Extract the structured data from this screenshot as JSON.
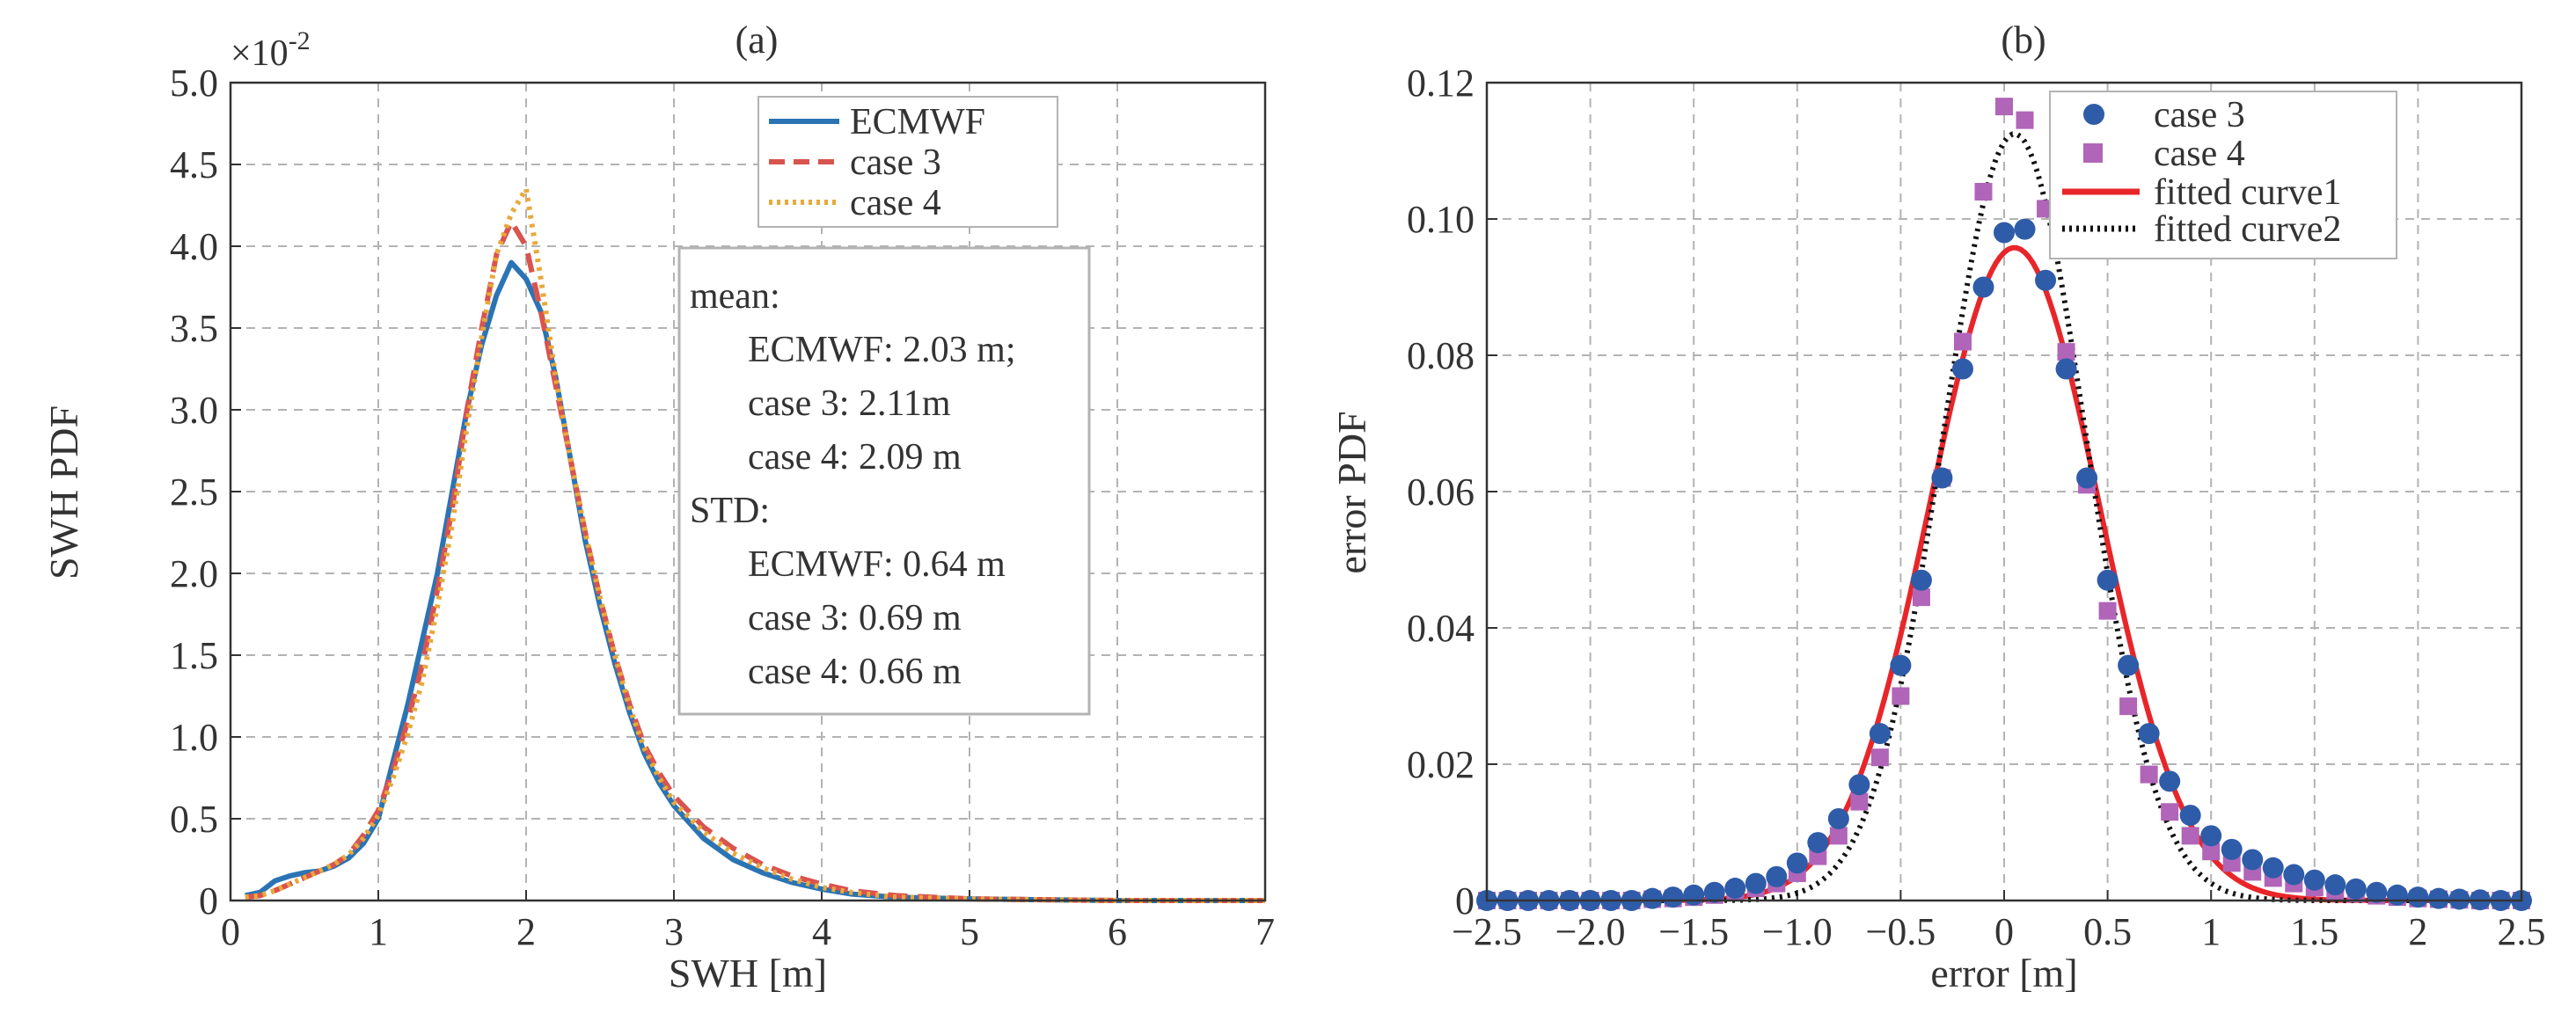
{
  "colors": {
    "ecmwf": "#2a74b5",
    "case3_dash": "#d9534f",
    "case4_dot": "#e8a93a",
    "case3_marker": "#2f5ca8",
    "case4_marker": "#b065b8",
    "fit1": "#e8262a",
    "fit2": "#111111",
    "grid": "#b3b3b3",
    "axis": "#333333"
  },
  "chart_data": [
    {
      "type": "line",
      "title": "(a)",
      "xlabel": "SWH [m]",
      "ylabel": "SWH PDF",
      "exponent_label": "×10",
      "exponent_power": "-2",
      "xlim": [
        0,
        7
      ],
      "ylim": [
        0,
        0.05
      ],
      "xticks": [
        0,
        1,
        2,
        3,
        4,
        5,
        6,
        7
      ],
      "xtick_labels": [
        "0",
        "1",
        "2",
        "3",
        "4",
        "5",
        "6",
        "7"
      ],
      "yticks": [
        0,
        0.005,
        0.01,
        0.015,
        0.02,
        0.025,
        0.03,
        0.035,
        0.04,
        0.045,
        0.05
      ],
      "ytick_labels": [
        "0",
        "0.5",
        "1.0",
        "1.5",
        "2.0",
        "2.5",
        "3.0",
        "3.5",
        "4.0",
        "4.5",
        "5.0"
      ],
      "grid": true,
      "legend_position": "top-right",
      "series": [
        {
          "name": "ECMWF",
          "style": "solid",
          "x": [
            0.1,
            0.2,
            0.3,
            0.4,
            0.5,
            0.6,
            0.7,
            0.8,
            0.9,
            1.0,
            1.1,
            1.2,
            1.3,
            1.4,
            1.5,
            1.6,
            1.7,
            1.8,
            1.9,
            2.0,
            2.1,
            2.2,
            2.3,
            2.4,
            2.5,
            2.6,
            2.7,
            2.8,
            2.9,
            3.0,
            3.2,
            3.4,
            3.6,
            3.8,
            4.0,
            4.2,
            4.5,
            5.0,
            5.5,
            6.0,
            7.0
          ],
          "y": [
            0.0003,
            0.0005,
            0.0012,
            0.0015,
            0.0017,
            0.0018,
            0.0021,
            0.0026,
            0.0035,
            0.005,
            0.0085,
            0.012,
            0.016,
            0.02,
            0.025,
            0.03,
            0.034,
            0.037,
            0.039,
            0.038,
            0.036,
            0.032,
            0.027,
            0.022,
            0.018,
            0.0145,
            0.0115,
            0.009,
            0.0072,
            0.0058,
            0.0038,
            0.0025,
            0.0017,
            0.0011,
            0.0007,
            0.0004,
            0.0002,
            0.0001,
            5e-05,
            0.0,
            0.0
          ]
        },
        {
          "name": "case 3",
          "style": "dashed",
          "x": [
            0.1,
            0.2,
            0.3,
            0.4,
            0.5,
            0.6,
            0.7,
            0.8,
            0.9,
            1.0,
            1.1,
            1.2,
            1.3,
            1.4,
            1.5,
            1.6,
            1.7,
            1.8,
            1.9,
            2.0,
            2.1,
            2.2,
            2.3,
            2.4,
            2.5,
            2.6,
            2.7,
            2.8,
            2.9,
            3.0,
            3.2,
            3.4,
            3.6,
            3.8,
            4.0,
            4.2,
            4.5,
            5.0,
            5.5,
            6.0,
            7.0
          ],
          "y": [
            0.0002,
            0.0003,
            0.0006,
            0.001,
            0.0014,
            0.0018,
            0.0022,
            0.0028,
            0.004,
            0.0055,
            0.008,
            0.011,
            0.0145,
            0.019,
            0.024,
            0.03,
            0.035,
            0.0395,
            0.0415,
            0.04,
            0.036,
            0.0315,
            0.027,
            0.0225,
            0.0185,
            0.015,
            0.012,
            0.0095,
            0.0078,
            0.0064,
            0.0045,
            0.0032,
            0.0022,
            0.0015,
            0.001,
            0.0006,
            0.0003,
            0.0001,
            5e-05,
            0.0,
            0.0
          ]
        },
        {
          "name": "case 4",
          "style": "dotted",
          "x": [
            0.1,
            0.2,
            0.3,
            0.4,
            0.5,
            0.6,
            0.7,
            0.8,
            0.9,
            1.0,
            1.1,
            1.2,
            1.3,
            1.4,
            1.5,
            1.6,
            1.7,
            1.8,
            1.9,
            2.0,
            2.1,
            2.2,
            2.3,
            2.4,
            2.5,
            2.6,
            2.7,
            2.8,
            2.9,
            3.0,
            3.2,
            3.4,
            3.6,
            3.8,
            4.0,
            4.2,
            4.5,
            5.0,
            5.5,
            6.0,
            7.0
          ],
          "y": [
            0.0002,
            0.0003,
            0.0006,
            0.001,
            0.0014,
            0.0018,
            0.0022,
            0.0028,
            0.0038,
            0.0052,
            0.0075,
            0.0102,
            0.0135,
            0.018,
            0.023,
            0.029,
            0.0345,
            0.0395,
            0.042,
            0.0435,
            0.038,
            0.032,
            0.027,
            0.0225,
            0.0185,
            0.015,
            0.0118,
            0.0093,
            0.0075,
            0.006,
            0.0042,
            0.0029,
            0.002,
            0.0013,
            0.0008,
            0.0005,
            0.0002,
            0.0001,
            5e-05,
            0.0,
            0.0
          ]
        }
      ],
      "annotation": {
        "lines": [
          "mean:",
          "ECMWF: 2.03 m;",
          "case 3: 2.11m",
          "case 4: 2.09 m",
          "STD:",
          "ECMWF: 0.64 m",
          "case 3: 0.69 m",
          "case 4: 0.66 m"
        ]
      }
    },
    {
      "type": "scatter",
      "title": "(b)",
      "xlabel": "error [m]",
      "ylabel": "error PDF",
      "xlim": [
        -2.5,
        2.5
      ],
      "ylim": [
        0,
        0.12
      ],
      "xticks": [
        -2.5,
        -2.0,
        -1.5,
        -1.0,
        -0.5,
        0,
        0.5,
        1,
        1.5,
        2,
        2.5
      ],
      "xtick_labels": [
        "−2.5",
        "−2.0",
        "−1.5",
        "−1.0",
        "−0.5",
        "0",
        "0.5",
        "1",
        "1.5",
        "2",
        "2.5"
      ],
      "yticks": [
        0,
        0.02,
        0.04,
        0.06,
        0.08,
        0.1,
        0.12
      ],
      "ytick_labels": [
        "0",
        "0.02",
        "0.04",
        "0.06",
        "0.08",
        "0.10",
        "0.12"
      ],
      "grid": true,
      "legend_position": "top-right",
      "series": [
        {
          "name": "case 3",
          "marker": "circle",
          "x": [
            -2.5,
            -2.4,
            -2.3,
            -2.2,
            -2.1,
            -2.0,
            -1.9,
            -1.8,
            -1.7,
            -1.6,
            -1.5,
            -1.4,
            -1.3,
            -1.2,
            -1.1,
            -1.0,
            -0.9,
            -0.8,
            -0.7,
            -0.6,
            -0.5,
            -0.4,
            -0.3,
            -0.2,
            -0.1,
            0.0,
            0.1,
            0.2,
            0.3,
            0.4,
            0.5,
            0.6,
            0.7,
            0.8,
            0.9,
            1.0,
            1.1,
            1.2,
            1.3,
            1.4,
            1.5,
            1.6,
            1.7,
            1.8,
            1.9,
            2.0,
            2.1,
            2.2,
            2.3,
            2.4,
            2.5
          ],
          "y": [
            0.0,
            0.0,
            0.0,
            0.0,
            0.0,
            0.0,
            0.0,
            0.0,
            0.0003,
            0.0005,
            0.0008,
            0.0012,
            0.0018,
            0.0025,
            0.0035,
            0.0055,
            0.0085,
            0.012,
            0.017,
            0.0245,
            0.0345,
            0.047,
            0.062,
            0.078,
            0.09,
            0.098,
            0.0985,
            0.091,
            0.078,
            0.062,
            0.047,
            0.0345,
            0.0245,
            0.0175,
            0.0125,
            0.0095,
            0.0075,
            0.006,
            0.0048,
            0.0038,
            0.003,
            0.0023,
            0.0017,
            0.0012,
            0.0008,
            0.0005,
            0.0003,
            0.0002,
            0.0001,
            0.0,
            0.0
          ]
        },
        {
          "name": "case 4",
          "marker": "square",
          "x": [
            -2.5,
            -2.4,
            -2.3,
            -2.2,
            -2.1,
            -2.0,
            -1.9,
            -1.8,
            -1.7,
            -1.6,
            -1.5,
            -1.4,
            -1.3,
            -1.2,
            -1.1,
            -1.0,
            -0.9,
            -0.8,
            -0.7,
            -0.6,
            -0.5,
            -0.4,
            -0.3,
            -0.2,
            -0.1,
            0.0,
            0.1,
            0.2,
            0.3,
            0.4,
            0.5,
            0.6,
            0.7,
            0.8,
            0.9,
            1.0,
            1.1,
            1.2,
            1.3,
            1.4,
            1.5,
            1.6,
            1.7,
            1.8,
            1.9,
            2.0,
            2.1,
            2.2,
            2.3,
            2.4,
            2.5
          ],
          "y": [
            0.0,
            0.0,
            0.0,
            0.0,
            0.0,
            0.0,
            0.0,
            0.0,
            0.0002,
            0.0003,
            0.0005,
            0.0008,
            0.0012,
            0.0018,
            0.0025,
            0.004,
            0.0065,
            0.0095,
            0.0145,
            0.021,
            0.03,
            0.0445,
            0.062,
            0.082,
            0.104,
            0.1165,
            0.1145,
            0.1015,
            0.0805,
            0.061,
            0.0425,
            0.0285,
            0.0185,
            0.013,
            0.0095,
            0.0072,
            0.0055,
            0.0042,
            0.0033,
            0.0025,
            0.0019,
            0.0014,
            0.001,
            0.0007,
            0.0005,
            0.0003,
            0.0002,
            0.0001,
            0.0,
            0.0,
            0.0
          ]
        },
        {
          "name": "fitted curve1",
          "style": "solid",
          "gaussian": {
            "amplitude": 0.0958,
            "mean": 0.05,
            "sigma": 0.41
          }
        },
        {
          "name": "fitted curve2",
          "style": "dotted",
          "gaussian": {
            "amplitude": 0.1125,
            "mean": 0.05,
            "sigma": 0.345
          }
        }
      ]
    }
  ]
}
